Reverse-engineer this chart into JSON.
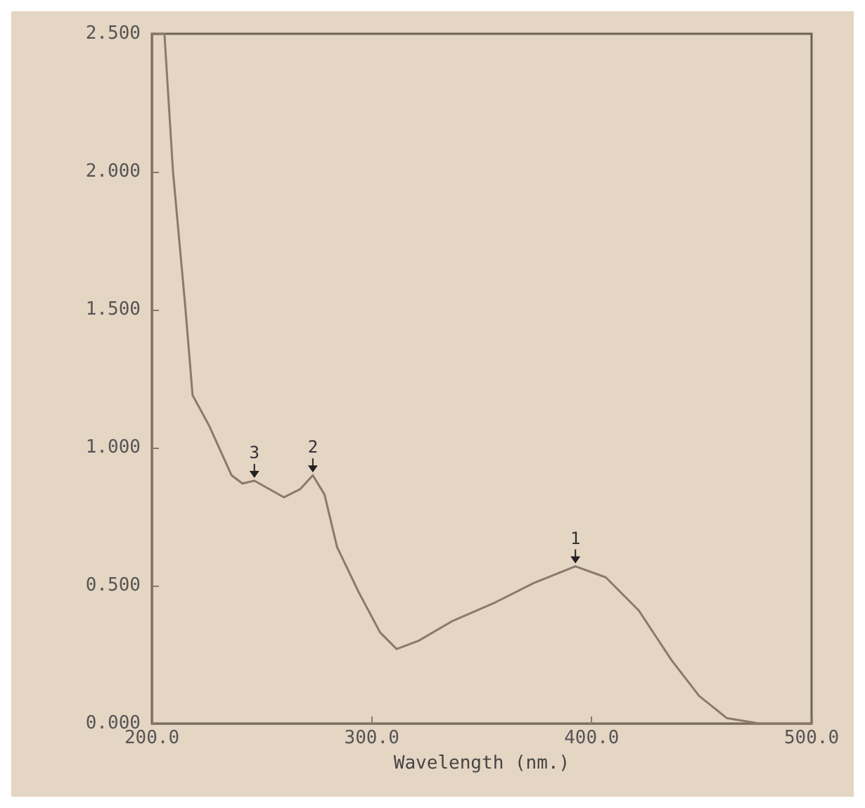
{
  "chart_data": {
    "type": "line",
    "xlabel": "Wavelength (nm.)",
    "x": [
      202,
      205.7,
      209.6,
      215.3,
      218.5,
      226,
      236.2,
      241.2,
      246.6,
      260,
      267.5,
      273.2,
      278.5,
      284.2,
      293.8,
      303.8,
      311.3,
      321.3,
      336.3,
      356.4,
      373.8,
      392.6,
      406.4,
      421.4,
      436.3,
      448.9,
      461.4,
      476.3,
      500
    ],
    "series": [
      {
        "color": "#8a7a6a",
        "values": [
          2.5,
          2.5,
          2.0,
          1.5,
          1.19,
          1.08,
          0.9,
          0.87,
          0.88,
          0.82,
          0.85,
          0.9,
          0.83,
          0.64,
          0.48,
          0.33,
          0.27,
          0.3,
          0.37,
          0.44,
          0.51,
          0.57,
          0.53,
          0.41,
          0.23,
          0.1,
          0.02,
          0.0,
          0.0
        ]
      }
    ],
    "xlim": [
      200,
      500
    ],
    "xticks": [
      {
        "value": 200,
        "label": "200.0"
      },
      {
        "value": 300,
        "label": "300.0"
      },
      {
        "value": 400,
        "label": "400.0"
      },
      {
        "value": 500,
        "label": "500.0"
      }
    ],
    "ylim": [
      0,
      2.5
    ],
    "yticks": [
      {
        "value": 0,
        "label": "0.000"
      },
      {
        "value": 0.5,
        "label": "0.500"
      },
      {
        "value": 1,
        "label": "1.000"
      },
      {
        "value": 1.5,
        "label": "1.500"
      },
      {
        "value": 2,
        "label": "2.000"
      },
      {
        "value": 2.5,
        "label": "2.500"
      }
    ],
    "annotations": [
      {
        "text": "1",
        "x": 392.6,
        "y": 0.57
      },
      {
        "text": "2",
        "x": 273.2,
        "y": 0.9
      },
      {
        "text": "3",
        "x": 246.6,
        "y": 0.88
      }
    ],
    "grid": false,
    "marker": "none",
    "line_style": "solid"
  }
}
